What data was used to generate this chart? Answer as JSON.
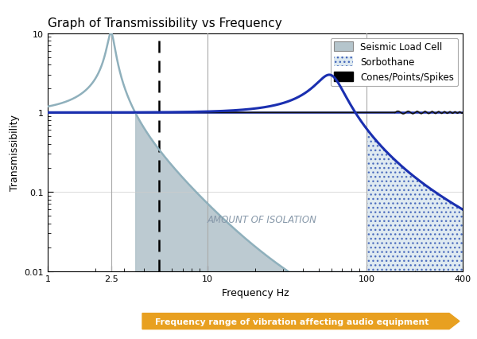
{
  "title": "Graph of Transmissibility vs Frequency",
  "xlabel": "Frequency Hz",
  "ylabel": "Transmissibility",
  "xlim": [
    1,
    400
  ],
  "ylim": [
    0.01,
    10
  ],
  "freq_range_label": "Frequency range of vibration affecting audio equipment",
  "amount_isolation_label": "AMOUNT OF ISOLATION",
  "legend_labels": [
    "Seismic Load Cell",
    "Sorbothane",
    "Cones/Points/Spikes"
  ],
  "seismic_color": "#8fb0bc",
  "seismic_fill": "#b5c5cc",
  "sorbothane_fill_face": "#dce8f0",
  "sorbothane_dot_color": "#4466bb",
  "cones_color": "#111111",
  "line_blue": "#1a2fb0",
  "arrow_color": "#e8a020",
  "arrow_text_color": "#ffffff",
  "dashed_line_x": 5,
  "resonance_freq_seismic": 2.5,
  "resonance_freq_sorbothane": 60,
  "seismic_zeta": 0.05,
  "sorbothane_zeta": 0.18
}
